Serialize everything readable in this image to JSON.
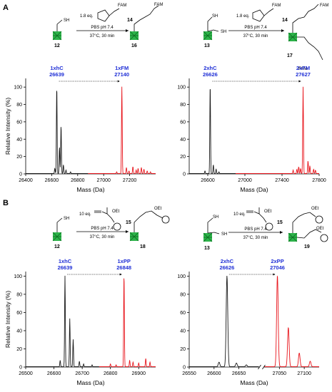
{
  "colors": {
    "black_trace": "#1a1a1a",
    "red_trace": "#e8141b",
    "blue_label": "#1f2fd6",
    "protein_green": "#2db34a"
  },
  "panel_labels": [
    "A",
    "B"
  ],
  "schemes": [
    {
      "reactant": "12",
      "reagent_eq": "1.8 eq.",
      "reagent": "14",
      "reagent_tag": "FAM",
      "conditions_1": "PBS pH 7.4",
      "conditions_2": "37°C, 30 min",
      "product": "16",
      "thiol": "SH",
      "product_tag": "FAM",
      "icon": "maleimide-reagent"
    },
    {
      "reactant": "13",
      "reagent_eq": "1.8 eq.",
      "reagent": "14",
      "reagent_tag": "FAM",
      "conditions_1": "PBS pH 7.4",
      "conditions_2": "37°C, 30 min",
      "product": "17",
      "thiol": "SH",
      "product_tag": "FAM",
      "icon": "maleimide-reagent"
    },
    {
      "reactant": "12",
      "reagent_eq": "10 eq.",
      "reagent": "15",
      "reagent_tag": "OEt",
      "conditions_1": "PBS pH 7.4",
      "conditions_2": "37°C, 30 min",
      "product": "18",
      "thiol": "SH",
      "product_tag": "OEt",
      "icon": "phosphonamidate-reagent"
    },
    {
      "reactant": "13",
      "reagent_eq": "10 eq.",
      "reagent": "15",
      "reagent_tag": "OEt",
      "conditions_1": "PBS pH 7.4",
      "conditions_2": "37°C, 30 min",
      "product": "19",
      "thiol": "SH",
      "product_tag": "OEt",
      "icon": "phosphonamidate-reagent"
    }
  ],
  "chart_data": [
    {
      "type": "line",
      "xlabel": "Mass (Da)",
      "ylabel": "Relative Intensity (%)",
      "xlim": [
        26400,
        27400
      ],
      "ylim": [
        0,
        110
      ],
      "xticks": [
        26400,
        26600,
        26800,
        27000,
        27200
      ],
      "yticks": [
        0,
        20,
        40,
        60,
        80,
        100
      ],
      "peak_labels": [
        {
          "name": "1xhC",
          "mass": "26639",
          "x": 26639
        },
        {
          "name": "1xFM",
          "mass": "27140",
          "x": 27140
        }
      ],
      "series": [
        {
          "color": "black",
          "x_range": [
            26400,
            26880
          ],
          "peaks": [
            [
              26639,
              100
            ],
            [
              26672,
              55
            ],
            [
              26660,
              30
            ],
            [
              26690,
              10
            ],
            [
              26624,
              6
            ],
            [
              26710,
              4
            ],
            [
              26745,
              2
            ]
          ]
        },
        {
          "color": "red",
          "x_range": [
            26880,
            27400
          ],
          "peaks": [
            [
              27140,
              100
            ],
            [
              27175,
              7
            ],
            [
              27225,
              8
            ],
            [
              27265,
              6
            ],
            [
              27290,
              7
            ],
            [
              27310,
              5
            ],
            [
              27250,
              4
            ],
            [
              27195,
              3
            ],
            [
              27100,
              2
            ],
            [
              27335,
              3
            ],
            [
              27360,
              2
            ]
          ]
        }
      ]
    },
    {
      "type": "line",
      "xlabel": "Mass (Da)",
      "ylabel": "",
      "xlim": [
        26400,
        27800
      ],
      "ylim": [
        0,
        110
      ],
      "xticks": [
        26600,
        27000,
        27400,
        27800
      ],
      "yticks": [
        0,
        20,
        40,
        60,
        80,
        100
      ],
      "peak_labels": [
        {
          "name": "2xhC",
          "mass": "26626",
          "x": 26626
        },
        {
          "name": "2xFM",
          "mass": "27627",
          "x": 27627
        }
      ],
      "series": [
        {
          "color": "black",
          "x_range": [
            26400,
            26900
          ],
          "peaks": [
            [
              26626,
              100
            ],
            [
              26660,
              10
            ],
            [
              26690,
              5
            ],
            [
              26570,
              3
            ],
            [
              26720,
              2
            ]
          ]
        },
        {
          "color": "red",
          "x_range": [
            26900,
            27800
          ],
          "peaks": [
            [
              27627,
              100
            ],
            [
              27680,
              15
            ],
            [
              27700,
              9
            ],
            [
              27600,
              6
            ],
            [
              27580,
              8
            ],
            [
              27560,
              5
            ],
            [
              27740,
              5
            ],
            [
              27760,
              4
            ],
            [
              27520,
              4
            ]
          ]
        }
      ]
    },
    {
      "type": "line",
      "xlabel": "Mass (Da)",
      "ylabel": "Relative Intensity (%)",
      "xlim": [
        26500,
        26960
      ],
      "ylim": [
        0,
        105
      ],
      "xticks": [
        26500,
        26600,
        26700,
        26800,
        26900
      ],
      "yticks": [
        0,
        20,
        40,
        60,
        80,
        100
      ],
      "peak_labels": [
        {
          "name": "1xhC",
          "mass": "26639",
          "x": 26639
        },
        {
          "name": "1xPP",
          "mass": "26848",
          "x": 26848
        }
      ],
      "series": [
        {
          "color": "black",
          "x_range": [
            26500,
            26760
          ],
          "peaks": [
            [
              26639,
              100
            ],
            [
              26656,
              53
            ],
            [
              26668,
              30
            ],
            [
              26622,
              7
            ],
            [
              26690,
              6
            ],
            [
              26705,
              3
            ],
            [
              26735,
              2
            ]
          ]
        },
        {
          "color": "red",
          "x_range": [
            26760,
            26960
          ],
          "peaks": [
            [
              26848,
              100
            ],
            [
              26868,
              7
            ],
            [
              26880,
              5
            ],
            [
              26900,
              4
            ],
            [
              26925,
              9
            ],
            [
              26940,
              5
            ],
            [
              26800,
              3
            ],
            [
              26820,
              2
            ]
          ]
        }
      ]
    },
    {
      "type": "line",
      "xlabel": "Mass (Da)",
      "ylabel": "",
      "xlim": [
        26550,
        27130
      ],
      "ylim": [
        0,
        105
      ],
      "xticks": [
        26550,
        26600,
        26650,
        27050,
        27100
      ],
      "xtick_labels": [
        "26550",
        "26600",
        "26650",
        "27050",
        "27100"
      ],
      "axis_break": {
        "after": 26690,
        "before": 27020
      },
      "yticks": [
        0,
        20,
        40,
        60,
        80,
        100
      ],
      "peak_labels": [
        {
          "name": "2xhC",
          "mass": "26626",
          "x": 26626
        },
        {
          "name": "2xPP",
          "mass": "27046",
          "x": 27046
        }
      ],
      "series": [
        {
          "color": "black",
          "x_range": [
            26550,
            26690
          ],
          "peaks": [
            [
              26626,
              100
            ],
            [
              26610,
              5
            ],
            [
              26645,
              4
            ],
            [
              26665,
              2
            ]
          ]
        },
        {
          "color": "red",
          "x_range": [
            27020,
            27130
          ],
          "peaks": [
            [
              27046,
              100
            ],
            [
              27068,
              43
            ],
            [
              27090,
              15
            ],
            [
              27112,
              6
            ]
          ]
        }
      ]
    }
  ]
}
